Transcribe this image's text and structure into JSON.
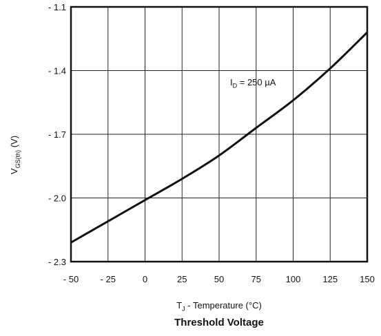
{
  "chart_data": {
    "type": "line",
    "title": "Threshold Voltage",
    "xlabel": {
      "main": "T",
      "sub": "J",
      "rest": " - Temperature (°C)"
    },
    "ylabel": {
      "main": "V",
      "sub": "GS(th)",
      "rest": " (V)"
    },
    "annotation": {
      "main": "I",
      "sub": "D",
      "rest": " = 250 µA"
    },
    "xlim": [
      -50,
      150
    ],
    "ylim": [
      -2.3,
      -1.1
    ],
    "x_ticks": [
      -50,
      -25,
      0,
      25,
      50,
      75,
      100,
      125,
      150
    ],
    "x_tick_labels": [
      "- 50",
      "- 25",
      "0",
      "25",
      "50",
      "75",
      "100",
      "125",
      "150"
    ],
    "y_ticks": [
      -1.1,
      -1.4,
      -1.7,
      -2.0,
      -2.3
    ],
    "y_tick_labels": [
      "- 1.1",
      "- 1.4",
      "- 1.7",
      "- 2.0",
      "- 2.3"
    ],
    "grid": true,
    "series": [
      {
        "x": [
          -50,
          -25,
          0,
          25,
          50,
          75,
          100,
          125,
          150
        ],
        "y": [
          -2.21,
          -2.11,
          -2.01,
          -1.91,
          -1.8,
          -1.67,
          -1.54,
          -1.39,
          -1.22
        ]
      }
    ]
  }
}
